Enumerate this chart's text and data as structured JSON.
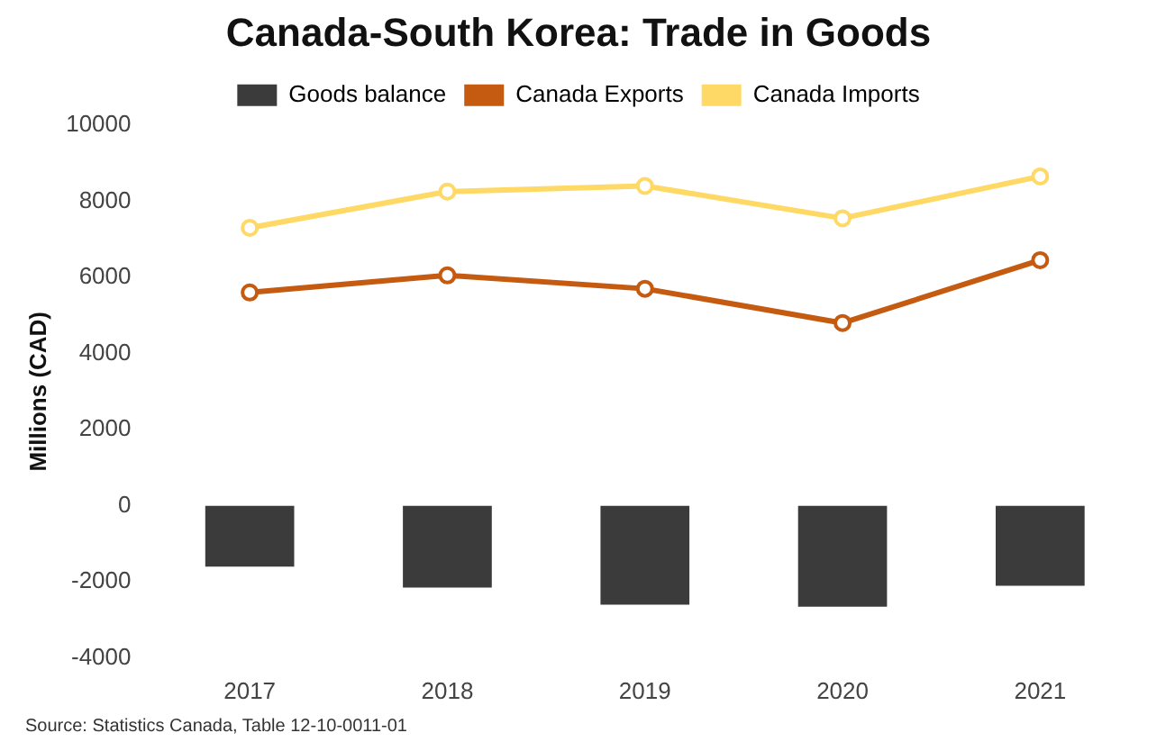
{
  "chart_data": {
    "type": "bar",
    "title": "Canada-South Korea: Trade in Goods",
    "ylabel": "Millions (CAD)",
    "categories": [
      "2017",
      "2018",
      "2019",
      "2020",
      "2021"
    ],
    "series": [
      {
        "name": "Goods balance",
        "color": "#3b3b3b",
        "values": [
          -1600,
          -2150,
          -2600,
          -2650,
          -2100
        ]
      },
      {
        "name": "Canada Exports",
        "type": "line",
        "color": "#c55a11",
        "values": [
          5600,
          6050,
          5700,
          4800,
          6450
        ]
      },
      {
        "name": "Canada Imports",
        "type": "line",
        "color": "#ffd966",
        "values": [
          7300,
          8250,
          8400,
          7550,
          8650
        ]
      }
    ],
    "ylim": [
      -4000,
      10000
    ],
    "yticks": [
      -4000,
      -2000,
      0,
      2000,
      4000,
      6000,
      8000,
      10000
    ],
    "grid": false,
    "legend": "top",
    "marker": "circle",
    "annotations": [
      "Source: Statistics Canada, Table 12-10-0011-01"
    ]
  }
}
